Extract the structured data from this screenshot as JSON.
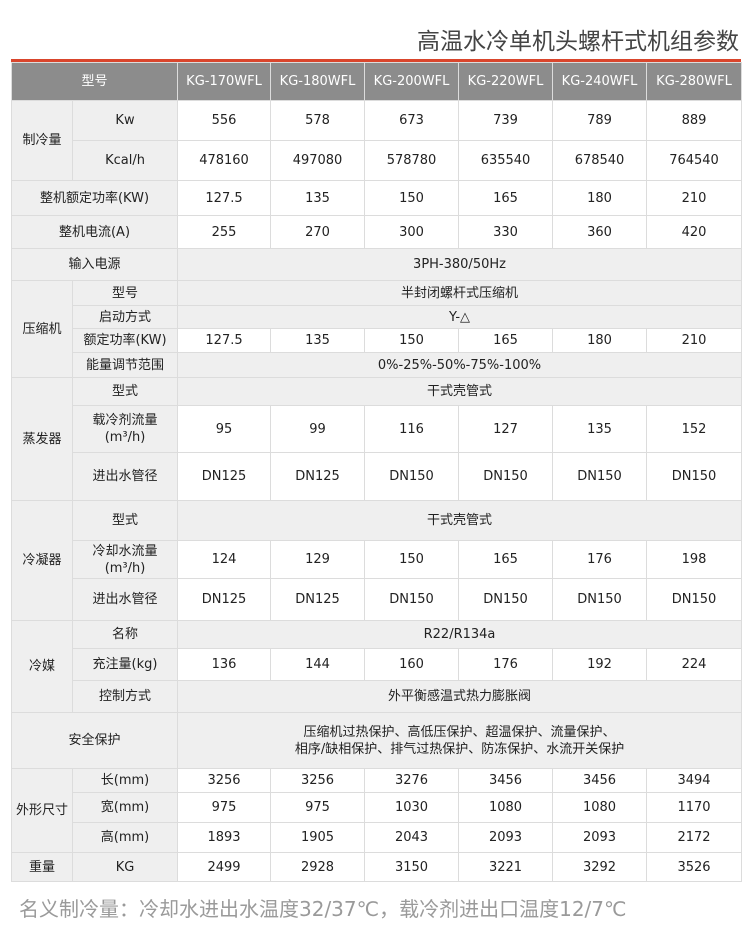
{
  "title": "高温水冷单机头螺杆式机组参数",
  "accent_color": "#d9452c",
  "header": {
    "label": "型号",
    "models": [
      "KG-170WFL",
      "KG-180WFL",
      "KG-200WFL",
      "KG-220WFL",
      "KG-240WFL",
      "KG-280WFL"
    ]
  },
  "rows": [
    {
      "group": "制冷量",
      "group_span": 2,
      "label": "Kw",
      "values": [
        "556",
        "578",
        "673",
        "739",
        "789",
        "889"
      ]
    },
    {
      "label": "Kcal/h",
      "values": [
        "478160",
        "497080",
        "578780",
        "635540",
        "678540",
        "764540"
      ]
    },
    {
      "label": "整机额定功率(KW)",
      "full": true,
      "values": [
        "127.5",
        "135",
        "150",
        "165",
        "180",
        "210"
      ]
    },
    {
      "label": "整机电流(A)",
      "full": true,
      "values": [
        "255",
        "270",
        "300",
        "330",
        "360",
        "420"
      ]
    },
    {
      "label": "输入电源",
      "full": true,
      "merged": "3PH-380/50Hz"
    },
    {
      "group": "压缩机",
      "group_span": 4,
      "label": "型号",
      "merged": "半封闭螺杆式压缩机"
    },
    {
      "label": "启动方式",
      "merged": "Y-△"
    },
    {
      "label": "额定功率(KW)",
      "values": [
        "127.5",
        "135",
        "150",
        "165",
        "180",
        "210"
      ]
    },
    {
      "label": "能量调节范围",
      "merged": "0%-25%-50%-75%-100%"
    },
    {
      "group": "蒸发器",
      "group_span": 3,
      "label": "型式",
      "merged": "干式壳管式"
    },
    {
      "label": "载冷剂流量(m³/h)",
      "values": [
        "95",
        "99",
        "116",
        "127",
        "135",
        "152"
      ]
    },
    {
      "label": "进出水管径",
      "values": [
        "DN125",
        "DN125",
        "DN150",
        "DN150",
        "DN150",
        "DN150"
      ]
    },
    {
      "group": "冷凝器",
      "group_span": 3,
      "label": "型式",
      "merged": "干式壳管式"
    },
    {
      "label": "冷却水流量(m³/h)",
      "values": [
        "124",
        "129",
        "150",
        "165",
        "176",
        "198"
      ]
    },
    {
      "label": "进出水管径",
      "values": [
        "DN125",
        "DN125",
        "DN150",
        "DN150",
        "DN150",
        "DN150"
      ]
    },
    {
      "group": "冷媒",
      "group_span": 3,
      "label": "名称",
      "merged": "R22/R134a"
    },
    {
      "label": "充注量(kg)",
      "values": [
        "136",
        "144",
        "160",
        "176",
        "192",
        "224"
      ]
    },
    {
      "label": "控制方式",
      "merged": "外平衡感温式热力膨胀阀"
    },
    {
      "label": "安全保护",
      "full": true,
      "merged_lines": [
        "压缩机过热保护、高低压保护、超温保护、流量保护、",
        "相序/缺相保护、排气过热保护、防冻保护、水流开关保护"
      ]
    },
    {
      "group": "外形尺寸",
      "group_span": 3,
      "label": "长(mm)",
      "values": [
        "3256",
        "3256",
        "3276",
        "3456",
        "3456",
        "3494"
      ]
    },
    {
      "label": "宽(mm)",
      "values": [
        "975",
        "975",
        "1030",
        "1080",
        "1080",
        "1170"
      ]
    },
    {
      "label": "高(mm)",
      "values": [
        "1893",
        "1905",
        "2043",
        "2093",
        "2093",
        "2172"
      ]
    },
    {
      "group": "重量",
      "group_span": 1,
      "label": "KG",
      "values": [
        "2499",
        "2928",
        "3150",
        "3221",
        "3292",
        "3526"
      ]
    }
  ],
  "footer": "名义制冷量：冷却水进出水温度32/37℃，载冷剂进出口温度12/7℃"
}
